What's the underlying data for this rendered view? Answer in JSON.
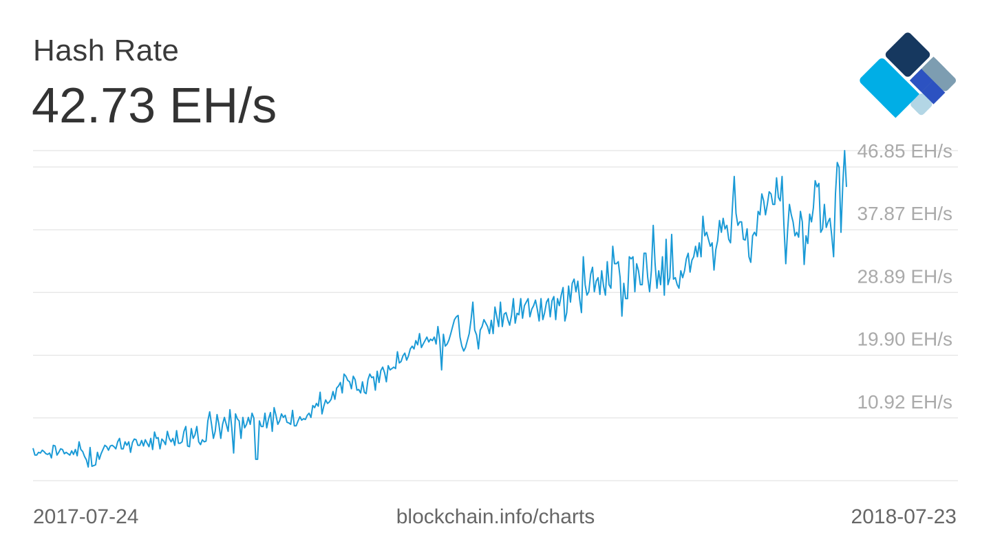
{
  "header": {
    "title": "Hash Rate",
    "current_value": "42.73 EH/s"
  },
  "footer": {
    "start_date": "2017-07-24",
    "source": "blockchain.info/charts",
    "end_date": "2018-07-23"
  },
  "colors": {
    "line": "#1a9ad6",
    "grid": "#dddddd",
    "tick_label": "#aaaaaa",
    "logo_dark": "#16385f",
    "logo_grey": "#7d9db1",
    "logo_blue": "#2c52c1",
    "logo_light": "#b3d6e5",
    "logo_cyan": "#00aee6"
  },
  "logo": {
    "icon": "blockchain-diamond-logo"
  },
  "chart_data": {
    "type": "line",
    "title": "Hash Rate",
    "x_range": [
      "2017-07-24",
      "2018-07-23"
    ],
    "ylim": [
      1.94,
      49.2
    ],
    "y_ticks": [
      10.92,
      19.9,
      28.89,
      37.87,
      46.85
    ],
    "y_tick_labels": [
      "10.92 EH/s",
      "19.90 EH/s",
      "28.89 EH/s",
      "37.87 EH/s",
      "46.85 EH/s"
    ],
    "y_axis_position": "right",
    "grid": true,
    "series": [
      {
        "values": [
          6.6,
          5.6,
          5.6,
          6.0,
          5.9,
          6.3,
          6.1,
          5.8,
          5.7,
          5.9,
          5.2,
          7.0,
          6.9,
          5.6,
          6.0,
          6.5,
          6.4,
          5.8,
          6.0,
          5.8,
          5.6,
          6.2,
          5.7,
          6.4,
          5.5,
          7.5,
          6.4,
          6.1,
          5.4,
          4.9,
          3.9,
          6.7,
          4.0,
          4.1,
          4.2,
          6.0,
          5.0,
          5.8,
          6.4,
          7.0,
          6.8,
          6.3,
          6.9,
          7.0,
          6.8,
          6.5,
          7.5,
          8.0,
          6.5,
          6.5,
          7.5,
          7.0,
          7.5,
          6.0,
          7.4,
          7.9,
          7.8,
          7.0,
          7.0,
          7.7,
          6.9,
          7.8,
          7.3,
          6.8,
          8.0,
          6.4,
          8.9,
          8.0,
          8.1,
          6.5,
          7.9,
          7.6,
          7.1,
          9.0,
          8.0,
          7.5,
          8.0,
          7.0,
          9.1,
          7.3,
          7.3,
          7.5,
          9.0,
          9.7,
          6.9,
          6.8,
          9.4,
          8.0,
          8.5,
          9.7,
          7.5,
          7.1,
          7.8,
          7.5,
          7.6,
          10.5,
          11.8,
          10.0,
          8.0,
          9.0,
          11.4,
          10.0,
          8.0,
          10.0,
          11.0,
          10.0,
          9.0,
          12.1,
          9.5,
          5.9,
          11.5,
          10.8,
          10.5,
          8.0,
          11.0,
          9.5,
          10.0,
          11.0,
          10.0,
          11.6,
          10.9,
          5.0,
          5.0,
          10.5,
          9.7,
          9.7,
          11.6,
          9.5,
          10.8,
          11.7,
          9.0,
          12.4,
          11.3,
          10.0,
          10.5,
          11.5,
          11.0,
          11.3,
          10.3,
          10.2,
          10.0,
          12.0,
          9.8,
          9.8,
          10.5,
          11.1,
          10.6,
          10.8,
          10.7,
          11.3,
          11.6,
          11.0,
          12.7,
          12.4,
          13.0,
          12.6,
          14.6,
          11.5,
          12.6,
          13.5,
          13.0,
          13.2,
          13.6,
          14.7,
          13.6,
          15.2,
          15.5,
          16.0,
          14.5,
          17.2,
          16.9,
          16.3,
          16.1,
          15.1,
          16.9,
          16.4,
          14.9,
          15.0,
          14.5,
          16.1,
          14.6,
          14.4,
          16.4,
          17.2,
          16.7,
          16.8,
          14.9,
          17.6,
          16.0,
          17.7,
          18.2,
          17.4,
          16.1,
          18.4,
          17.8,
          18.0,
          18.2,
          18.0,
          20.4,
          18.8,
          19.0,
          19.8,
          20.2,
          19.2,
          19.8,
          20.8,
          21.2,
          20.8,
          22.0,
          21.4,
          23.0,
          21.0,
          21.5,
          22.0,
          22.5,
          21.8,
          22.2,
          22.0,
          22.5,
          21.5,
          24.0,
          22.0,
          17.8,
          22.9,
          21.2,
          21.5,
          22.1,
          23.0,
          24.0,
          25.0,
          25.4,
          25.6,
          22.5,
          21.2,
          20.5,
          21.0,
          22.0,
          23.0,
          25.0,
          27.5,
          23.5,
          22.8,
          20.8,
          23.5,
          24.0,
          25.0,
          24.5,
          24.0,
          23.0,
          24.9,
          23.0,
          26.8,
          25.4,
          24.0,
          27.5,
          24.0,
          25.8,
          26.0,
          25.0,
          24.2,
          25.6,
          28.0,
          24.5,
          25.9,
          25.7,
          28.0,
          25.2,
          27.0,
          27.5,
          28.0,
          25.4,
          26.5,
          27.0,
          27.8,
          26.5,
          24.8,
          28.0,
          25.0,
          26.0,
          27.5,
          28.0,
          25.4,
          27.7,
          28.3,
          25.0,
          28.0,
          27.0,
          28.5,
          29.6,
          24.8,
          26.0,
          29.8,
          27.5,
          30.2,
          30.8,
          29.0,
          30.5,
          28.0,
          26.0,
          34.0,
          30.0,
          28.5,
          29.0,
          31.5,
          32.5,
          29.0,
          30.5,
          31.0,
          28.6,
          32.0,
          29.8,
          28.5,
          33.3,
          30.0,
          29.5,
          35.5,
          33.0,
          33.0,
          33.3,
          31.0,
          25.5,
          30.2,
          28.0,
          28.0,
          34.0,
          33.7,
          34.0,
          29.0,
          33.0,
          32.0,
          30.0,
          30.0,
          34.5,
          34.5,
          31.0,
          29.0,
          32.0,
          38.5,
          33.0,
          29.5,
          32.0,
          30.0,
          34.0,
          28.5,
          36.5,
          30.0,
          31.0,
          37.2,
          30.8,
          31.0,
          30.0,
          29.5,
          32.0,
          31.0,
          32.0,
          33.7,
          34.5,
          31.8,
          33.5,
          34.0,
          35.5,
          34.0,
          36.0,
          34.0,
          39.8,
          37.0,
          37.5,
          36.5,
          35.5,
          36.0,
          32.1,
          35.0,
          36.3,
          39.2,
          37.5,
          39.5,
          38.0,
          38.5,
          36.5,
          36.0,
          41.0,
          45.5,
          40.2,
          38.5,
          39.0,
          39.0,
          36.5,
          36.4,
          38.0,
          34.0,
          33.2,
          37.0,
          37.5,
          37.0,
          40.5,
          40.0,
          43.0,
          42.0,
          40.0,
          41.5,
          43.3,
          43.0,
          41.5,
          41.5,
          45.3,
          42.5,
          42.0,
          45.5,
          38.5,
          33.0,
          37.7,
          41.5,
          40.0,
          39.0,
          37.0,
          37.5,
          36.8,
          40.5,
          39.0,
          32.9,
          37.0,
          35.9,
          40.1,
          39.0,
          41.0,
          44.9,
          44.0,
          44.5,
          37.5,
          38.0,
          41.5,
          38.2,
          39.0,
          39.5,
          37.0,
          34.0,
          43.0,
          47.5,
          46.8,
          37.5,
          44.5,
          49.2,
          44.0
        ]
      }
    ]
  }
}
